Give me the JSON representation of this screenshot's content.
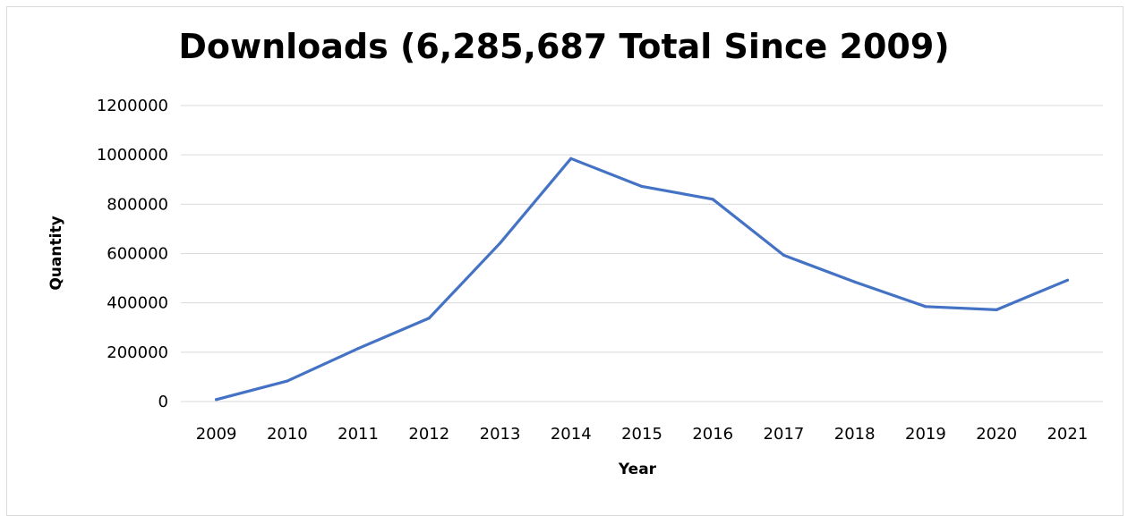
{
  "chart_data": {
    "type": "line",
    "title": "Downloads (6,285,687 Total Since 2009)",
    "xlabel": "Year",
    "ylabel": "Quantity",
    "categories": [
      "2009",
      "2010",
      "2011",
      "2012",
      "2013",
      "2014",
      "2015",
      "2016",
      "2017",
      "2018",
      "2019",
      "2020",
      "2021"
    ],
    "values": [
      8000,
      83000,
      215000,
      338000,
      642000,
      985000,
      872000,
      820000,
      593000,
      485000,
      385000,
      372000,
      492000
    ],
    "ylim": [
      0,
      1200000
    ],
    "yticks": [
      "0",
      "200000",
      "400000",
      "600000",
      "800000",
      "1000000",
      "1200000"
    ],
    "grid": true,
    "line_color": "#4472C4"
  }
}
